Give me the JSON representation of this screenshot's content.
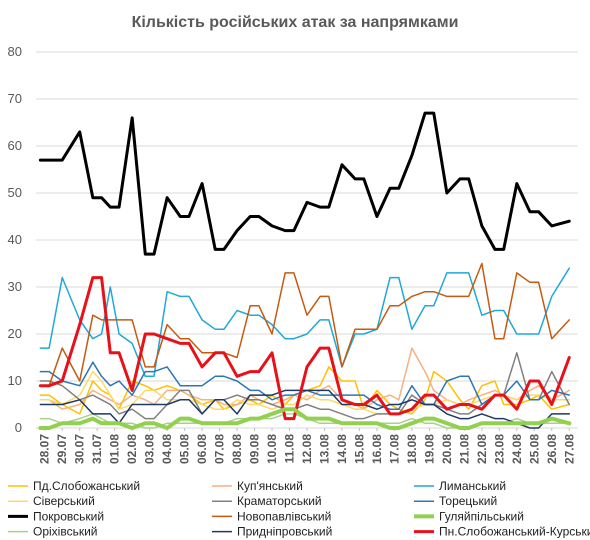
{
  "chart_data": {
    "type": "line",
    "title": "Кількість російських атак за напрямками",
    "ylim": [
      0,
      80
    ],
    "yticks": [
      "0",
      "10",
      "20",
      "30",
      "40",
      "50",
      "60",
      "70",
      "80"
    ],
    "grid": true,
    "legend_position": "bottom",
    "categories": [
      "28.07",
      "29.07",
      "30.07",
      "31.07",
      "01.08",
      "02.08",
      "03.08",
      "04.08",
      "05.08",
      "06.08",
      "07.08",
      "08.08",
      "09.08",
      "10.08",
      "11.08",
      "12.08",
      "13.08",
      "14.08",
      "15.08",
      "16.08",
      "17.08",
      "18.08",
      "19.08",
      "20.08",
      "21.08",
      "22.08",
      "23.08",
      "24.08",
      "25.08",
      "26.08",
      "27.08"
    ],
    "x": [
      "28.07",
      "28.07",
      "29.07",
      "30.07",
      "31.07",
      "31.07",
      "01.08",
      "01.08",
      "02.08",
      "03.08",
      "03.08",
      "04.08",
      "05.08",
      "05.08",
      "06.08",
      "07.08",
      "07.08",
      "08.08",
      "09.08",
      "09.08",
      "10.08",
      "11.08",
      "11.08",
      "12.08",
      "13.08",
      "13.08",
      "14.08",
      "15.08",
      "15.08",
      "16.08",
      "17.08",
      "17.08",
      "18.08",
      "19.08",
      "19.08",
      "20.08",
      "21.08",
      "21.08",
      "22.08",
      "23.08",
      "23.08",
      "24.08",
      "25.08",
      "25.08",
      "26.08",
      "27.08"
    ],
    "series": [
      {
        "name": "Пд.Слобожанський",
        "color": "#FFC000",
        "width": 1.5,
        "values": [
          7,
          7,
          5,
          3,
          10,
          8,
          7,
          4,
          10,
          9,
          8,
          9,
          8,
          7,
          5,
          6,
          4,
          5,
          6,
          5,
          7,
          5,
          7,
          8,
          9,
          13,
          10,
          10,
          4,
          8,
          5,
          4,
          3,
          6,
          12,
          10,
          6,
          4,
          9,
          10,
          5,
          5,
          6,
          7,
          4,
          5
        ]
      },
      {
        "name": "Куп'янський",
        "color": "#F4B183",
        "width": 1.5,
        "values": [
          6,
          6,
          4,
          5,
          8,
          7,
          6,
          5,
          7,
          6,
          5,
          8,
          8,
          7,
          6,
          6,
          5,
          5,
          7,
          6,
          5,
          6,
          7,
          6,
          8,
          9,
          6,
          5,
          4,
          6,
          7,
          6,
          17,
          12,
          8,
          6,
          5,
          6,
          7,
          8,
          7,
          6,
          8,
          9,
          6,
          8
        ]
      },
      {
        "name": "Лиманський",
        "color": "#1FA8D8",
        "width": 1.5,
        "values": [
          17,
          17,
          32,
          23,
          19,
          20,
          30,
          20,
          18,
          11,
          11,
          29,
          28,
          28,
          23,
          21,
          21,
          25,
          24,
          24,
          22,
          19,
          19,
          20,
          23,
          23,
          13,
          20,
          20,
          21,
          32,
          32,
          21,
          26,
          26,
          33,
          33,
          33,
          24,
          25,
          25,
          20,
          20,
          20,
          28,
          34
        ]
      },
      {
        "name": "Сіверський",
        "color": "#FFD966",
        "width": 1.5,
        "values": [
          6,
          6,
          5,
          7,
          12,
          10,
          7,
          4,
          5,
          8,
          8,
          6,
          6,
          6,
          5,
          4,
          4,
          6,
          5,
          5,
          4,
          5,
          5,
          7,
          6,
          6,
          5,
          4,
          4,
          3,
          3,
          3,
          4,
          5,
          5,
          6,
          5,
          5,
          6,
          7,
          7,
          6,
          7,
          7,
          6,
          6
        ]
      },
      {
        "name": "Краматорський",
        "color": "#808080",
        "width": 1.5,
        "values": [
          10,
          10,
          9,
          6,
          7,
          6,
          5,
          3,
          4,
          2,
          2,
          5,
          8,
          8,
          3,
          6,
          6,
          7,
          6,
          6,
          5,
          4,
          4,
          5,
          4,
          4,
          3,
          2,
          2,
          3,
          3,
          3,
          7,
          5,
          5,
          4,
          3,
          3,
          5,
          7,
          7,
          16,
          6,
          6,
          12,
          5
        ]
      },
      {
        "name": "Торецький",
        "color": "#2E75B6",
        "width": 1.5,
        "values": [
          12,
          12,
          10,
          9,
          14,
          11,
          9,
          10,
          7,
          12,
          12,
          13,
          9,
          9,
          9,
          11,
          11,
          10,
          8,
          8,
          6,
          7,
          7,
          8,
          7,
          7,
          7,
          7,
          7,
          5,
          4,
          4,
          9,
          5,
          5,
          10,
          11,
          11,
          5,
          7,
          7,
          10,
          6,
          6,
          8,
          7
        ]
      },
      {
        "name": "Покровський",
        "color": "#000000",
        "width": 3,
        "values": [
          57,
          57,
          57,
          63,
          49,
          49,
          47,
          47,
          66,
          37,
          37,
          49,
          45,
          45,
          52,
          38,
          38,
          42,
          45,
          45,
          43,
          42,
          42,
          48,
          47,
          47,
          56,
          53,
          53,
          45,
          51,
          51,
          58,
          67,
          67,
          50,
          53,
          53,
          43,
          38,
          38,
          52,
          46,
          46,
          43,
          44
        ]
      },
      {
        "name": "Новопавлівський",
        "color": "#C55A11",
        "width": 1.5,
        "values": [
          9,
          9,
          17,
          10,
          24,
          23,
          23,
          23,
          23,
          13,
          13,
          22,
          19,
          19,
          16,
          16,
          16,
          15,
          26,
          26,
          20,
          33,
          33,
          24,
          28,
          28,
          13,
          21,
          21,
          21,
          26,
          26,
          28,
          29,
          29,
          28,
          28,
          28,
          35,
          19,
          19,
          33,
          31,
          31,
          19,
          23
        ]
      },
      {
        "name": "Гуляйпільський",
        "color": "#92D050",
        "width": 4,
        "values": [
          0,
          0,
          1,
          1,
          2,
          1,
          1,
          1,
          0,
          1,
          1,
          0,
          2,
          2,
          1,
          1,
          1,
          1,
          2,
          2,
          3,
          4,
          4,
          2,
          2,
          2,
          1,
          1,
          1,
          1,
          0,
          0,
          1,
          2,
          2,
          1,
          0,
          0,
          1,
          1,
          1,
          1,
          1,
          1,
          2,
          1
        ]
      },
      {
        "name": "Оріхівський",
        "color": "#A9D18E",
        "width": 1.5,
        "values": [
          2,
          2,
          1,
          2,
          3,
          2,
          1,
          1,
          1,
          0,
          0,
          1,
          1,
          1,
          1,
          1,
          1,
          2,
          2,
          2,
          2,
          3,
          3,
          2,
          1,
          1,
          1,
          1,
          1,
          1,
          1,
          1,
          2,
          1,
          1,
          0,
          0,
          0,
          1,
          1,
          1,
          2,
          1,
          1,
          1,
          1
        ]
      },
      {
        "name": "Придніпровський",
        "color": "#1F3864",
        "width": 1.5,
        "values": [
          5,
          5,
          5,
          6,
          3,
          3,
          3,
          1,
          5,
          5,
          5,
          5,
          6,
          6,
          3,
          6,
          6,
          3,
          7,
          7,
          7,
          8,
          8,
          8,
          8,
          8,
          5,
          5,
          5,
          4,
          5,
          5,
          6,
          5,
          5,
          3,
          2,
          2,
          3,
          2,
          2,
          1,
          0,
          0,
          3,
          3
        ]
      },
      {
        "name": "Пн.Слобожанський-Курський",
        "color": "#E8111A",
        "width": 3,
        "values": [
          9,
          9,
          10,
          22,
          32,
          32,
          16,
          16,
          8,
          20,
          20,
          19,
          18,
          18,
          13,
          16,
          16,
          11,
          12,
          12,
          16,
          2,
          2,
          13,
          17,
          17,
          6,
          5,
          5,
          7,
          3,
          3,
          4,
          7,
          7,
          4,
          5,
          5,
          4,
          7,
          7,
          4,
          10,
          10,
          5,
          15
        ]
      }
    ]
  }
}
